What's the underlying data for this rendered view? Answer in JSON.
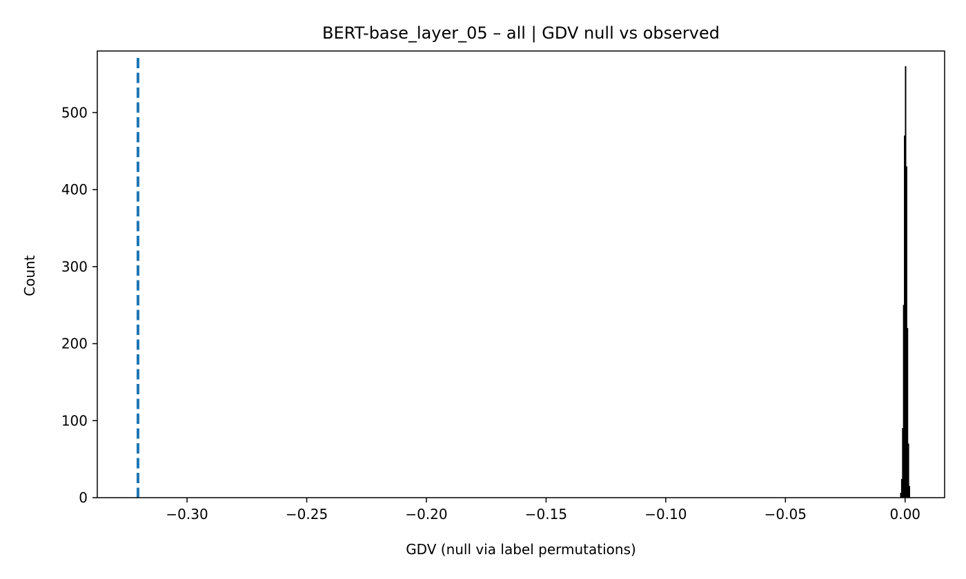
{
  "chart_data": {
    "type": "bar",
    "title": "BERT-base_layer_05 – all | GDV null vs observed",
    "xlabel": "GDV (null via label permutations)",
    "ylabel": "Count",
    "xlim": [
      -0.3375,
      0.0165
    ],
    "ylim": [
      0,
      580
    ],
    "x_ticks": [
      -0.3,
      -0.25,
      -0.2,
      -0.15,
      -0.1,
      -0.05,
      0.0
    ],
    "x_tick_labels": [
      "−0.30",
      "−0.25",
      "−0.20",
      "−0.15",
      "−0.10",
      "−0.05",
      "0.00"
    ],
    "y_ticks": [
      0,
      100,
      200,
      300,
      400,
      500
    ],
    "y_tick_labels": [
      "0",
      "100",
      "200",
      "300",
      "400",
      "500"
    ],
    "grid": false,
    "series": [
      {
        "kind": "histogram",
        "color": "#000000",
        "bin_edges": [
          -0.002,
          -0.0016,
          -0.0012,
          -0.0008,
          -0.0004,
          0.0,
          0.0004,
          0.0008,
          0.0012,
          0.0016,
          0.002
        ],
        "counts": [
          6,
          24,
          90,
          250,
          470,
          560,
          430,
          220,
          70,
          15
        ]
      }
    ],
    "reference_lines": [
      {
        "kind": "vertical",
        "style": "dashed",
        "x": -0.3205,
        "color": "#1f77b4"
      }
    ]
  }
}
